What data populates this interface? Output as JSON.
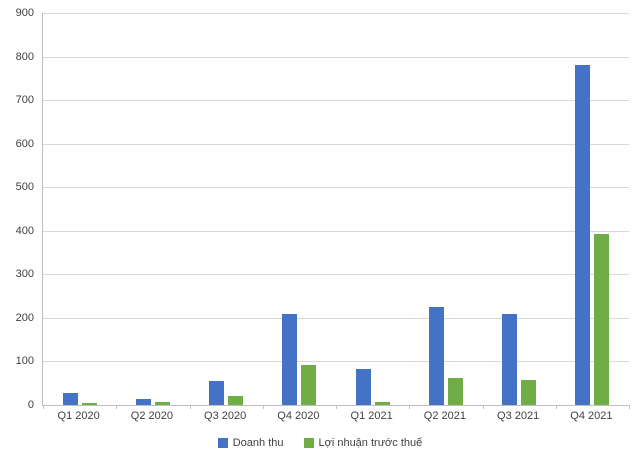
{
  "chart_data": {
    "type": "bar",
    "categories": [
      "Q1 2020",
      "Q2 2020",
      "Q3 2020",
      "Q4 2020",
      "Q1 2021",
      "Q2 2021",
      "Q3 2021",
      "Q4 2021"
    ],
    "series": [
      {
        "name": "Doanh thu",
        "color": "#4472C4",
        "values": [
          27,
          13,
          55,
          210,
          82,
          225,
          208,
          780
        ]
      },
      {
        "name": "Lợi nhuận trước thuế",
        "color": "#70AD47",
        "values": [
          4,
          6,
          20,
          92,
          8,
          62,
          57,
          392
        ]
      }
    ],
    "title": "",
    "xlabel": "",
    "ylabel": "",
    "ylim": [
      0,
      900
    ],
    "ytick_step": 100,
    "grid": true,
    "legend_position": "bottom",
    "axis_color": "#bfbfbf",
    "gridline_color": "#d9d9d9",
    "label_color": "#404040"
  }
}
